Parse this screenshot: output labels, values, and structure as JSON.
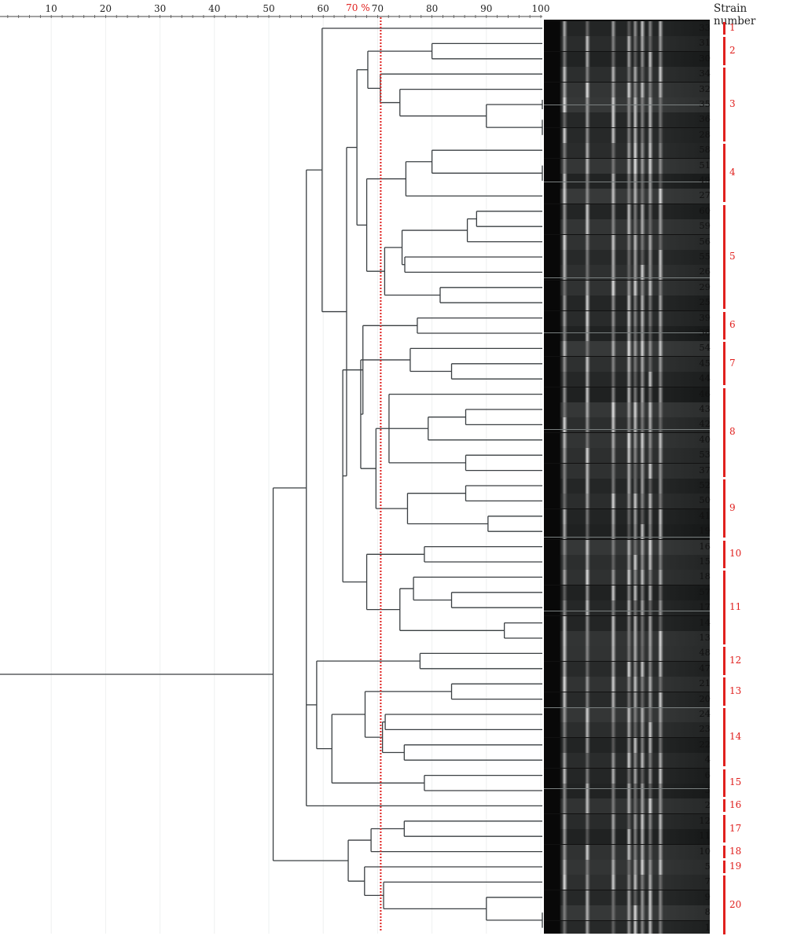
{
  "figure": {
    "axis": {
      "ticks": [
        10,
        20,
        30,
        40,
        50,
        60,
        70,
        80,
        90,
        100
      ],
      "tick_labels": [
        "10",
        "20",
        "30",
        "40",
        "50",
        "60",
        "70",
        "80",
        "90",
        "100"
      ],
      "cutoff_label": "70 %",
      "cutoff_value": 70
    },
    "legend_title": "Strain number",
    "colors": {
      "line": "#3a3f42",
      "cutoff": "#e0201e",
      "cluster": "#e0201e",
      "grid": "#eef0f0"
    },
    "strains": [
      "33",
      "31",
      "30",
      "34",
      "32",
      "35",
      "36",
      "28",
      "58",
      "51",
      "49",
      "27",
      "60",
      "59",
      "56",
      "55",
      "26",
      "29",
      "25",
      "39",
      "38",
      "54",
      "45",
      "44",
      "46",
      "43",
      "42",
      "40",
      "53",
      "37",
      "52",
      "50",
      "41",
      "19",
      "16",
      "15",
      "18",
      "57",
      "17",
      "14",
      "13",
      "48",
      "47",
      "21",
      "20",
      "24",
      "23",
      "22",
      "4",
      "6",
      "3",
      "2",
      "12",
      "11",
      "10",
      "5",
      "7",
      "9",
      "8",
      "1"
    ],
    "clusters": [
      {
        "label": "1",
        "from": 0,
        "to": 0
      },
      {
        "label": "2",
        "from": 1,
        "to": 2
      },
      {
        "label": "3",
        "from": 3,
        "to": 7
      },
      {
        "label": "4",
        "from": 8,
        "to": 11
      },
      {
        "label": "5",
        "from": 12,
        "to": 18
      },
      {
        "label": "6",
        "from": 19,
        "to": 20
      },
      {
        "label": "7",
        "from": 21,
        "to": 23
      },
      {
        "label": "8",
        "from": 24,
        "to": 29
      },
      {
        "label": "9",
        "from": 30,
        "to": 33
      },
      {
        "label": "10",
        "from": 34,
        "to": 35
      },
      {
        "label": "11",
        "from": 36,
        "to": 40
      },
      {
        "label": "12",
        "from": 41,
        "to": 42
      },
      {
        "label": "13",
        "from": 43,
        "to": 44
      },
      {
        "label": "14",
        "from": 45,
        "to": 48
      },
      {
        "label": "15",
        "from": 49,
        "to": 50
      },
      {
        "label": "16",
        "from": 51,
        "to": 51
      },
      {
        "label": "17",
        "from": 52,
        "to": 53
      },
      {
        "label": "18",
        "from": 54,
        "to": 54
      },
      {
        "label": "19",
        "from": 55,
        "to": 55
      },
      {
        "label": "20",
        "from": 56,
        "to": 59
      }
    ],
    "tree": [
      50.8,
      [
        56.9,
        [
          59.8,
          "33",
          [
            64.3,
            [
              66.2,
              [
                68.2,
                [
                  80,
                  "31",
                  "30"
                ],
                [
                  70.5,
                  "34",
                  [
                    74.1,
                    "32",
                    [
                      90.0,
                      [
                        100,
                        "35"
                      ],
                      [
                        100,
                        "36",
                        "28"
                      ]
                    ]
                  ]
                ]
              ],
              [
                68.0,
                [
                  75.2,
                  [
                    80,
                    "58",
                    [
                      100,
                      "51",
                      "49"
                    ]
                  ],
                  "27"
                ],
                [
                  71.3,
                  [
                    74.5,
                    [
                      86.5,
                      [
                        88.2,
                        "60",
                        "59"
                      ],
                      "56"
                    ],
                    [
                      75,
                      "55",
                      "26"
                    ]
                  ],
                  [
                    81.5,
                    "29",
                    "25"
                  ]
                ]
              ]
            ],
            [
              63.6,
              [
                67.3,
                [
                  77.3,
                  "39",
                  "38"
                ],
                [
                  66.9,
                  [
                    76.0,
                    "54",
                    [
                      83.6,
                      "45",
                      "44"
                    ]
                  ],
                  [
                    69.7,
                    [
                      72.1,
                      "46",
                      [
                        79.3,
                        [
                          86.2,
                          "43",
                          "42"
                        ],
                        "40"
                      ],
                      [
                        86.2,
                        "53",
                        "37"
                      ]
                    ],
                    [
                      75.5,
                      [
                        86.2,
                        "52",
                        "50"
                      ],
                      [
                        90.3,
                        "41",
                        "19"
                      ]
                    ]
                  ]
                ]
              ],
              [
                68.0,
                [
                  78.6,
                  "16",
                  "15"
                ],
                [
                  74.1,
                  [
                    76.6,
                    "18",
                    [
                      83.6,
                      "57",
                      "17"
                    ]
                  ],
                  [
                    93.3,
                    "14",
                    "13"
                  ]
                ]
              ]
            ]
          ]
        ],
        [
          58.8,
          [
            77.8,
            "48",
            "47"
          ],
          [
            61.6,
            [
              67.7,
              [
                83.6,
                "21",
                "20"
              ],
              [
                70.9,
                [
                  71.4,
                  "24",
                  "23"
                ],
                [
                  74.9,
                  "22",
                  "4"
                ]
              ]
            ],
            [
              78.6,
              "6",
              "3"
            ]
          ]
        ],
        "2"
      ],
      [
        64.6,
        [
          68.8,
          [
            74.9,
            "12",
            "11"
          ],
          "10"
        ],
        [
          67.6,
          "5",
          [
            71.1,
            "7",
            [
              90.0,
              "9",
              [
                100,
                "8",
                "1"
              ]
            ]
          ]
        ]
      ]
    ]
  }
}
